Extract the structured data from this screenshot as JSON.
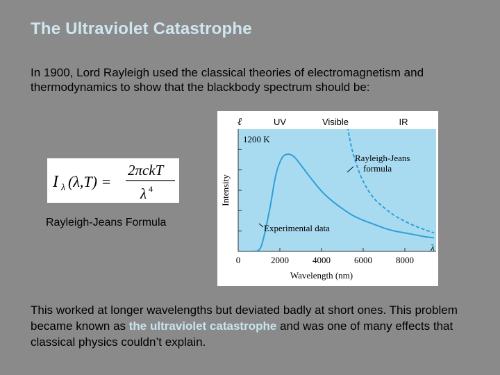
{
  "slide": {
    "title": "The Ultraviolet Catastrophe",
    "intro_text": "In 1900, Lord Rayleigh used the classical theories of electromagnetism and thermodynamics to show that the blackbody spectrum should be:",
    "formula_caption": "Rayleigh-Jeans Formula",
    "outro_before": "This worked at longer wavelengths but deviated badly at short ones. This problem became known as ",
    "outro_highlight": "the ultraviolet catastrophe",
    "outro_after": " and was one of many effects that classical physics couldn’t explain.",
    "colors": {
      "background": "#8a8a8a",
      "title": "#cfe6f0",
      "highlight": "#c8e4ef",
      "curve": "#2f9fd8"
    }
  },
  "formula": {
    "lhs": "I",
    "lhs_sub": "λ",
    "lhs_args": "(λ,T) =",
    "numerator": "2πckT",
    "denominator": "λ",
    "exponent": "4"
  },
  "chart_data": {
    "type": "line",
    "title": "",
    "temperature_label": "1200 K",
    "xlabel": "Wavelength (nm)",
    "ylabel": "Intensity",
    "xlim": [
      0,
      9500
    ],
    "x_ticks": [
      0,
      2000,
      4000,
      6000,
      8000
    ],
    "band_labels": {
      "uv": "UV",
      "visible": "Visible",
      "ir": "IR"
    },
    "axis_symbols": {
      "y": "ℓ",
      "x": "λ"
    },
    "grid": false,
    "series": [
      {
        "name": "Experimental data",
        "style": "solid",
        "x": [
          700,
          1100,
          1500,
          1800,
          2100,
          2400,
          2700,
          3000,
          3500,
          4000,
          4500,
          5000,
          5500,
          6000,
          6500,
          7000,
          7500,
          8000,
          8500,
          9000,
          9400
        ],
        "y": [
          0.0,
          0.05,
          0.42,
          0.78,
          0.96,
          1.0,
          0.97,
          0.89,
          0.75,
          0.62,
          0.52,
          0.44,
          0.37,
          0.32,
          0.28,
          0.24,
          0.21,
          0.19,
          0.17,
          0.15,
          0.14
        ]
      },
      {
        "name": "Rayleigh-Jeans formula",
        "style": "dashed",
        "x": [
          5150,
          5300,
          5500,
          5800,
          6100,
          6500,
          7000,
          7500,
          8000,
          8500,
          9000,
          9400
        ],
        "y": [
          1.45,
          1.22,
          1.02,
          0.82,
          0.68,
          0.55,
          0.45,
          0.37,
          0.31,
          0.26,
          0.22,
          0.19
        ]
      }
    ]
  }
}
